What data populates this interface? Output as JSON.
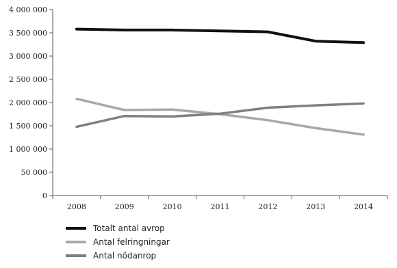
{
  "chart_data": {
    "type": "line",
    "categories": [
      "2008",
      "2009",
      "2010",
      "2011",
      "2012",
      "2013",
      "2014"
    ],
    "y_tick_labels": [
      "0",
      "50 000",
      "1 000 000",
      "1 500 000",
      "2 000 000",
      "2 500 000",
      "3 000 000",
      "3 500 000",
      "4 000 000"
    ],
    "ylim": [
      0,
      4000000
    ],
    "grid": false,
    "legend_position": "bottom-left",
    "series": [
      {
        "name": "Totalt antal avrop",
        "color": "#111111",
        "values": [
          3580000,
          3560000,
          3560000,
          3540000,
          3520000,
          3320000,
          3290000
        ]
      },
      {
        "name": "Antal felringningar",
        "color": "#a8a8a8",
        "values": [
          2080000,
          1840000,
          1850000,
          1750000,
          1620000,
          1450000,
          1310000
        ]
      },
      {
        "name": "Antal nödanrop",
        "color": "#7f7f7f",
        "values": [
          1480000,
          1710000,
          1700000,
          1760000,
          1890000,
          1940000,
          1980000
        ]
      }
    ]
  }
}
